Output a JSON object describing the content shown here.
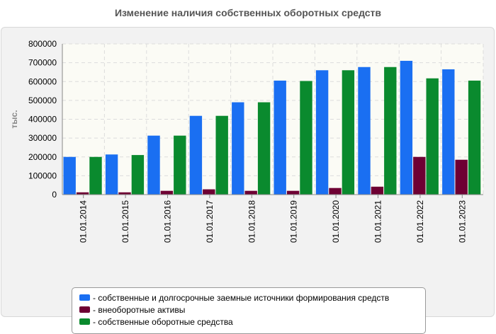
{
  "chart_data": {
    "type": "bar",
    "title": "Изменение наличия собственных оборотных средств",
    "ylabel": "тыс.",
    "xlabel": "",
    "ylim": [
      0,
      800000
    ],
    "yticks": [
      "0",
      "100000",
      "200000",
      "300000",
      "400000",
      "500000",
      "600000",
      "700000",
      "800000"
    ],
    "grid": true,
    "legend_position": "bottom",
    "categories": [
      "01.01.2014",
      "01.01.2015",
      "01.01.2016",
      "01.01.2017",
      "01.01.2018",
      "01.01.2019",
      "01.01.2020",
      "01.01.2021",
      "01.01.2022",
      "01.01.2023"
    ],
    "series": [
      {
        "name": "- собственные и долгосрочные заемные источники формирования средств",
        "color": "#1a6ff2",
        "values": [
          200000,
          213000,
          313000,
          418000,
          490000,
          605000,
          660000,
          677000,
          710000,
          665000
        ]
      },
      {
        "name": "- внеоборотные активы",
        "color": "#6e0033",
        "values": [
          12000,
          12000,
          20000,
          28000,
          20000,
          20000,
          35000,
          42000,
          200000,
          185000
        ]
      },
      {
        "name": "- собственные оборотные средства",
        "color": "#0a8a2e",
        "values": [
          200000,
          210000,
          313000,
          418000,
          490000,
          603000,
          660000,
          677000,
          617000,
          605000
        ]
      }
    ]
  }
}
